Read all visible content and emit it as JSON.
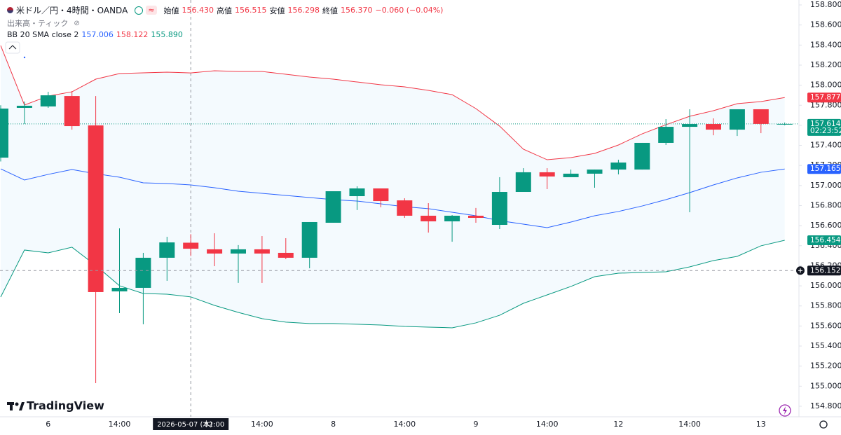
{
  "chart_data": {
    "type": "candlestick",
    "title": "米ドル／円・4時間・OANDA",
    "header": {
      "open_label": "始値",
      "open": "156.430",
      "high_label": "高値",
      "high": "156.515",
      "low_label": "安値",
      "low": "156.298",
      "close_label": "終値",
      "close": "156.370",
      "change": "−0.060 (−0.04%)"
    },
    "volume_label": "出来高・ティック",
    "brand": "TradingView",
    "categories": [
      null,
      null,
      "6",
      null,
      null,
      "14:00",
      null,
      null,
      null,
      null,
      null,
      "14:00",
      null,
      null,
      "8",
      null,
      null,
      "14:00",
      null,
      null,
      "9",
      null,
      null,
      "14:00",
      null,
      null,
      "12",
      null,
      null,
      "14:00",
      null,
      null,
      "13",
      null
    ],
    "open": [
      157.278,
      157.774,
      157.788,
      157.892,
      157.599,
      155.945,
      155.98,
      156.28,
      156.43,
      156.364,
      156.322,
      156.364,
      156.329,
      156.28,
      156.629,
      156.894,
      156.971,
      156.852,
      156.699,
      156.643,
      156.699,
      156.608,
      156.936,
      157.132,
      157.083,
      157.118,
      157.159,
      157.159,
      157.425,
      157.585,
      157.613,
      157.557,
      157.76,
      157.614
    ],
    "high": [
      157.8,
      157.837,
      157.934,
      157.941,
      157.892,
      156.573,
      156.329,
      156.489,
      156.515,
      156.524,
      156.406,
      156.496,
      156.475,
      156.636,
      156.943,
      156.992,
      156.971,
      156.873,
      156.824,
      156.706,
      156.776,
      157.083,
      157.173,
      157.173,
      157.159,
      157.159,
      157.257,
      157.425,
      157.662,
      157.76,
      157.669,
      157.76,
      157.76,
      157.628
    ],
    "low": [
      157.24,
      157.613,
      157.774,
      157.557,
      155.03,
      155.728,
      155.617,
      156.05,
      156.298,
      156.196,
      156.029,
      156.029,
      156.266,
      156.175,
      156.629,
      156.755,
      156.783,
      156.678,
      156.531,
      156.44,
      156.629,
      156.566,
      156.936,
      156.964,
      157.083,
      156.978,
      157.111,
      157.159,
      157.404,
      156.734,
      157.501,
      157.494,
      157.522,
      157.6
    ],
    "close": [
      157.767,
      157.795,
      157.899,
      157.592,
      155.938,
      155.98,
      156.28,
      156.433,
      156.37,
      156.322,
      156.364,
      156.322,
      156.28,
      156.636,
      156.943,
      156.971,
      156.845,
      156.699,
      156.643,
      156.699,
      156.678,
      156.936,
      157.132,
      157.09,
      157.118,
      157.159,
      157.229,
      157.425,
      157.585,
      157.613,
      157.557,
      157.76,
      157.614,
      157.614
    ],
    "up_color": "#089981",
    "down_color": "#f23645",
    "bands": {
      "name": "BB 20 SMA close 2",
      "fill": "rgba(33,150,243,0.05)",
      "lines": [
        {
          "color": "#2962ff",
          "legend_value": "157.006",
          "values": [
            157.166,
            157.055,
            157.111,
            157.159,
            157.118,
            157.083,
            157.027,
            157.02,
            157.006,
            156.978,
            156.943,
            156.922,
            156.901,
            156.88,
            156.859,
            156.845,
            156.817,
            156.789,
            156.769,
            156.734,
            156.699,
            156.65,
            156.615,
            156.58,
            156.636,
            156.699,
            156.741,
            156.796,
            156.859,
            156.929,
            157.006,
            157.076,
            157.132,
            157.165
          ]
        },
        {
          "color": "#f23645",
          "legend_value": "158.122",
          "values": [
            158.395,
            157.802,
            157.892,
            157.934,
            158.06,
            158.116,
            158.123,
            158.13,
            158.122,
            158.144,
            158.137,
            158.137,
            158.109,
            158.081,
            158.06,
            158.032,
            158.004,
            157.983,
            157.948,
            157.906,
            157.767,
            157.592,
            157.362,
            157.257,
            157.278,
            157.32,
            157.404,
            157.515,
            157.606,
            157.69,
            157.746,
            157.816,
            157.837,
            157.877
          ]
        },
        {
          "color": "#089981",
          "legend_value": "155.890",
          "values": [
            155.889,
            156.357,
            156.329,
            156.385,
            156.203,
            156.001,
            155.924,
            155.917,
            155.89,
            155.805,
            155.735,
            155.673,
            155.638,
            155.624,
            155.624,
            155.617,
            155.61,
            155.596,
            155.589,
            155.582,
            155.631,
            155.707,
            155.826,
            155.91,
            155.994,
            156.091,
            156.126,
            156.133,
            156.14,
            156.189,
            156.252,
            156.294,
            156.399,
            156.454
          ]
        }
      ]
    },
    "ylim": [
      154.695,
      158.849
    ],
    "yticks": [
      {
        "value": 154.8,
        "label": "154.800"
      },
      {
        "value": 155.0,
        "label": "155.000"
      },
      {
        "value": 155.2,
        "label": "155.200"
      },
      {
        "value": 155.4,
        "label": "155.400"
      },
      {
        "value": 155.6,
        "label": "155.600"
      },
      {
        "value": 155.8,
        "label": "155.800"
      },
      {
        "value": 156.0,
        "label": "156.000"
      },
      {
        "value": 156.2,
        "label": "156.200"
      },
      {
        "value": 156.4,
        "label": "156.400"
      },
      {
        "value": 156.6,
        "label": "156.600"
      },
      {
        "value": 156.8,
        "label": "156.800"
      },
      {
        "value": 157.0,
        "label": "157.000"
      },
      {
        "value": 157.2,
        "label": "157.200"
      },
      {
        "value": 157.4,
        "label": "157.400"
      },
      {
        "value": 157.6,
        "label": "157.600"
      },
      {
        "value": 157.8,
        "label": "157.800"
      },
      {
        "value": 158.0,
        "label": "158.000"
      },
      {
        "value": 158.2,
        "label": "158.200"
      },
      {
        "value": 158.4,
        "label": "158.400"
      },
      {
        "value": 158.6,
        "label": "158.600"
      },
      {
        "value": 158.8,
        "label": "158.800"
      }
    ],
    "grid": false,
    "price_labels": [
      {
        "value": 157.877,
        "label": "157.877",
        "color": "#f23645"
      },
      {
        "value": 157.614,
        "label": "157.614",
        "sub": "02:23:52",
        "color": "#089981",
        "line": true
      },
      {
        "value": 157.165,
        "label": "157.165",
        "color": "#2962ff"
      },
      {
        "value": 156.454,
        "label": "156.454",
        "color": "#089981"
      }
    ],
    "crosshair": {
      "index": 8,
      "date": "2026-05-07 (木)",
      "time": "02:00",
      "y": 156.152,
      "y_label": "156.152"
    }
  }
}
